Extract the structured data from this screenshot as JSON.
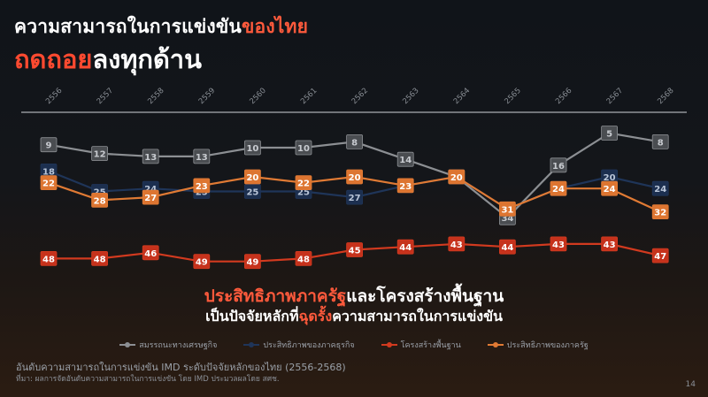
{
  "title": {
    "line1_part1": "ความสามารถในการแข่งขัน",
    "line1_part2": "ของไทย",
    "line2_part1": "ถดถอย",
    "line2_part2": "ลงทุกด้าน"
  },
  "conclusion": {
    "line1_part1": "ประสิทธิภาพภาครัฐ",
    "line1_part2": "และโครงสร้างพื้นฐาน",
    "line2_part1": "เป็นปัจจัยหลักที่",
    "line2_part2": "ฉุดรั้ง",
    "line2_part3": "ความสามารถในการแข่งขัน"
  },
  "footer": {
    "caption": "อันดับความสามารถในการแข่งขัน IMD ระดับปัจจัยหลักของไทย (2556-2568)",
    "source": "ที่มา: ผลการจัดอันดับความสามารถในการแข่งขัน โดย IMD ประมวลผลโดย สศช.",
    "page": "14"
  },
  "colors": {
    "economic": "#8c8f93",
    "business": "#1f3559",
    "infrastructure": "#d23a1f",
    "government": "#e07a34"
  },
  "chart_data": {
    "type": "line",
    "x": [
      "2556",
      "2557",
      "2558",
      "2559",
      "2560",
      "2561",
      "2562",
      "2563",
      "2564",
      "2565",
      "2566",
      "2567",
      "2568"
    ],
    "y_inverted": true,
    "series": [
      {
        "key": "economic",
        "name": "สมรรถนะทางเศรษฐกิจ",
        "values": [
          9,
          12,
          13,
          13,
          10,
          10,
          8,
          14,
          20,
          34,
          16,
          5,
          8
        ]
      },
      {
        "key": "business",
        "name": "ประสิทธิภาพของภาคธุรกิจ",
        "values": [
          18,
          25,
          24,
          25,
          25,
          25,
          27,
          23,
          20,
          31,
          24,
          20,
          24
        ]
      },
      {
        "key": "infrastructure",
        "name": "โครงสร้างพื้นฐาน",
        "values": [
          48,
          48,
          46,
          49,
          49,
          48,
          45,
          44,
          43,
          44,
          43,
          43,
          47
        ]
      },
      {
        "key": "government",
        "name": "ประสิทธิภาพของภาครัฐ",
        "values": [
          22,
          28,
          27,
          23,
          20,
          22,
          20,
          23,
          20,
          31,
          24,
          24,
          32
        ]
      }
    ]
  }
}
